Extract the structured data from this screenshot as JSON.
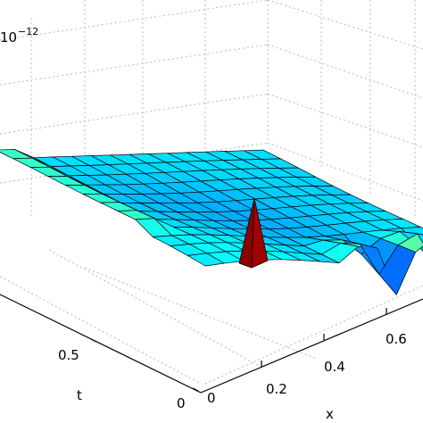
{
  "chart_data": {
    "type": "surface",
    "title": "",
    "scale_note": {
      "base": "10",
      "exponent": "−12"
    },
    "xlabel": "x",
    "ylabel": "t",
    "zlabel": "",
    "x_ticks": [
      "0.2",
      "0.4",
      "0.6"
    ],
    "t_ticks": [
      "0",
      "0.5"
    ],
    "x_axis_start_tick": "0",
    "grid": true,
    "colormap": "jet",
    "surface_features": [
      {
        "description": "sharp positive spike",
        "x": 0.33,
        "t": 0.15,
        "color": "#8b0000"
      },
      {
        "description": "oscillating ridge",
        "x_range": [
          0.45,
          0.75
        ],
        "t_range": [
          0.0,
          0.2
        ]
      },
      {
        "description": "nearly flat plateau",
        "x_range": [
          0.0,
          0.4
        ],
        "t_range": [
          0.3,
          1.0
        ]
      }
    ]
  },
  "labels": {
    "scale_base": "10",
    "scale_exp": "−12",
    "x_label": "x",
    "t_label": "t",
    "x_tick_0": "0",
    "x_tick_1": "0.2",
    "x_tick_2": "0.4",
    "x_tick_3": "0.6",
    "t_tick_0": "0",
    "t_tick_1": "0.5"
  }
}
